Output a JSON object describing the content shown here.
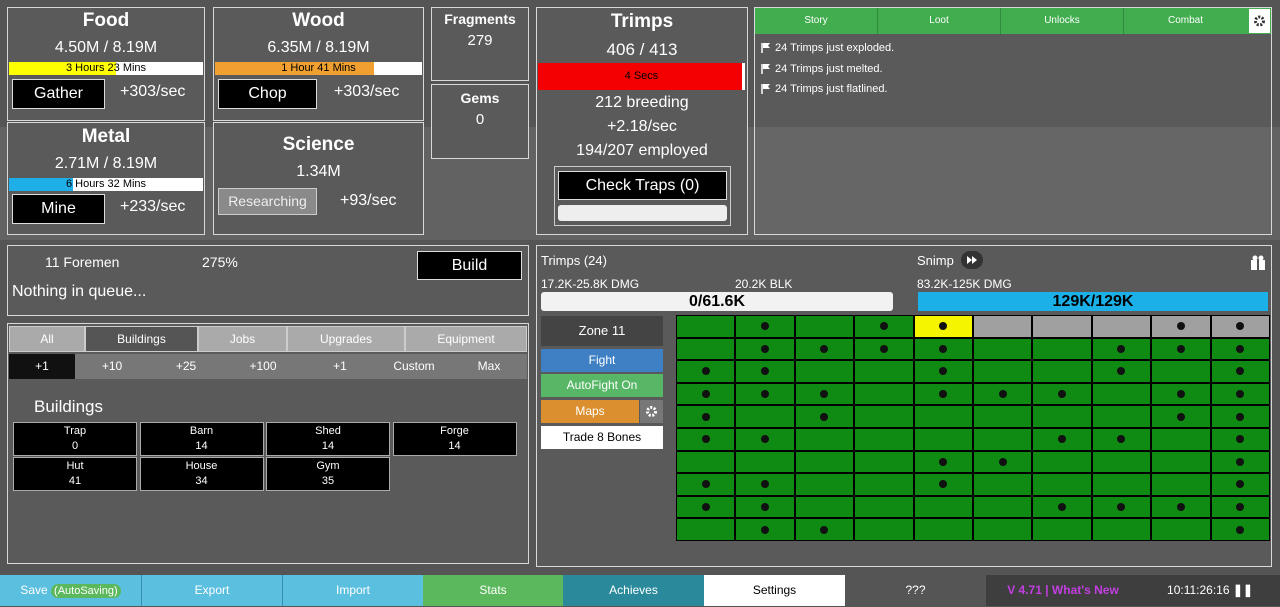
{
  "resources": [
    {
      "name": "Food",
      "amount": "4.50M / 8.19M",
      "time": "3 Hours 23 Mins",
      "button": "Gather",
      "rate": "+303/sec"
    },
    {
      "name": "Wood",
      "amount": "6.35M / 8.19M",
      "time": "1 Hour 41 Mins",
      "button": "Chop",
      "rate": "+303/sec"
    },
    {
      "name": "Metal",
      "amount": "2.71M / 8.19M",
      "time": "6 Hours 32 Mins",
      "button": "Mine",
      "rate": "+233/sec"
    }
  ],
  "science": {
    "name": "Science",
    "amount": "1.34M",
    "button": "Researching",
    "rate": "+93/sec"
  },
  "fragments": {
    "label": "Fragments",
    "value": "279"
  },
  "gems": {
    "label": "Gems",
    "value": "0"
  },
  "trimps": {
    "name": "Trimps",
    "amount": "406 / 413",
    "time": "4 Secs",
    "breeding": "212 breeding",
    "rate": "+2.18/sec",
    "employed": "194/207 employed",
    "button": "Check Traps (0)"
  },
  "log": {
    "tabs": [
      "Story",
      "Loot",
      "Unlocks",
      "Combat"
    ],
    "messages": [
      "24 Trimps just exploded.",
      "24 Trimps just melted.",
      "24 Trimps just flatlined."
    ]
  },
  "queue": {
    "foremen": "11 Foremen",
    "percent": "275%",
    "button": "Build",
    "status": "Nothing in queue..."
  },
  "tabs": [
    "All",
    "Buildings",
    "Jobs",
    "Upgrades",
    "Equipment"
  ],
  "amounts": [
    "+1",
    "+10",
    "+25",
    "+100",
    "+1",
    "Custom",
    "Max"
  ],
  "buildings": {
    "heading": "Buildings",
    "items": [
      {
        "name": "Trap",
        "count": "0"
      },
      {
        "name": "Barn",
        "count": "14"
      },
      {
        "name": "Shed",
        "count": "14"
      },
      {
        "name": "Forge",
        "count": "14"
      },
      {
        "name": "Hut",
        "count": "41"
      },
      {
        "name": "House",
        "count": "34"
      },
      {
        "name": "Gym",
        "count": "35"
      }
    ]
  },
  "battle": {
    "trimps": {
      "name": "Trimps (24)",
      "damage": "17.2K-25.8K DMG",
      "block": "20.2K BLK",
      "health": "0/61.6K"
    },
    "enemy": {
      "name": "Snimp",
      "damage": "83.2K-125K DMG",
      "health": "129K/129K"
    },
    "zone": "Zone 11",
    "fight": "Fight",
    "autofight": "AutoFight On",
    "maps": "Maps",
    "trade": "Trade 8 Bones"
  },
  "footer": {
    "save": "Save",
    "autosave": "(AutoSaving)",
    "export": "Export",
    "import": "Import",
    "stats": "Stats",
    "achieves": "Achieves",
    "settings": "Settings",
    "unknown": "???",
    "version": "V 4.71 | What's New",
    "time": "10:11:26:16"
  }
}
